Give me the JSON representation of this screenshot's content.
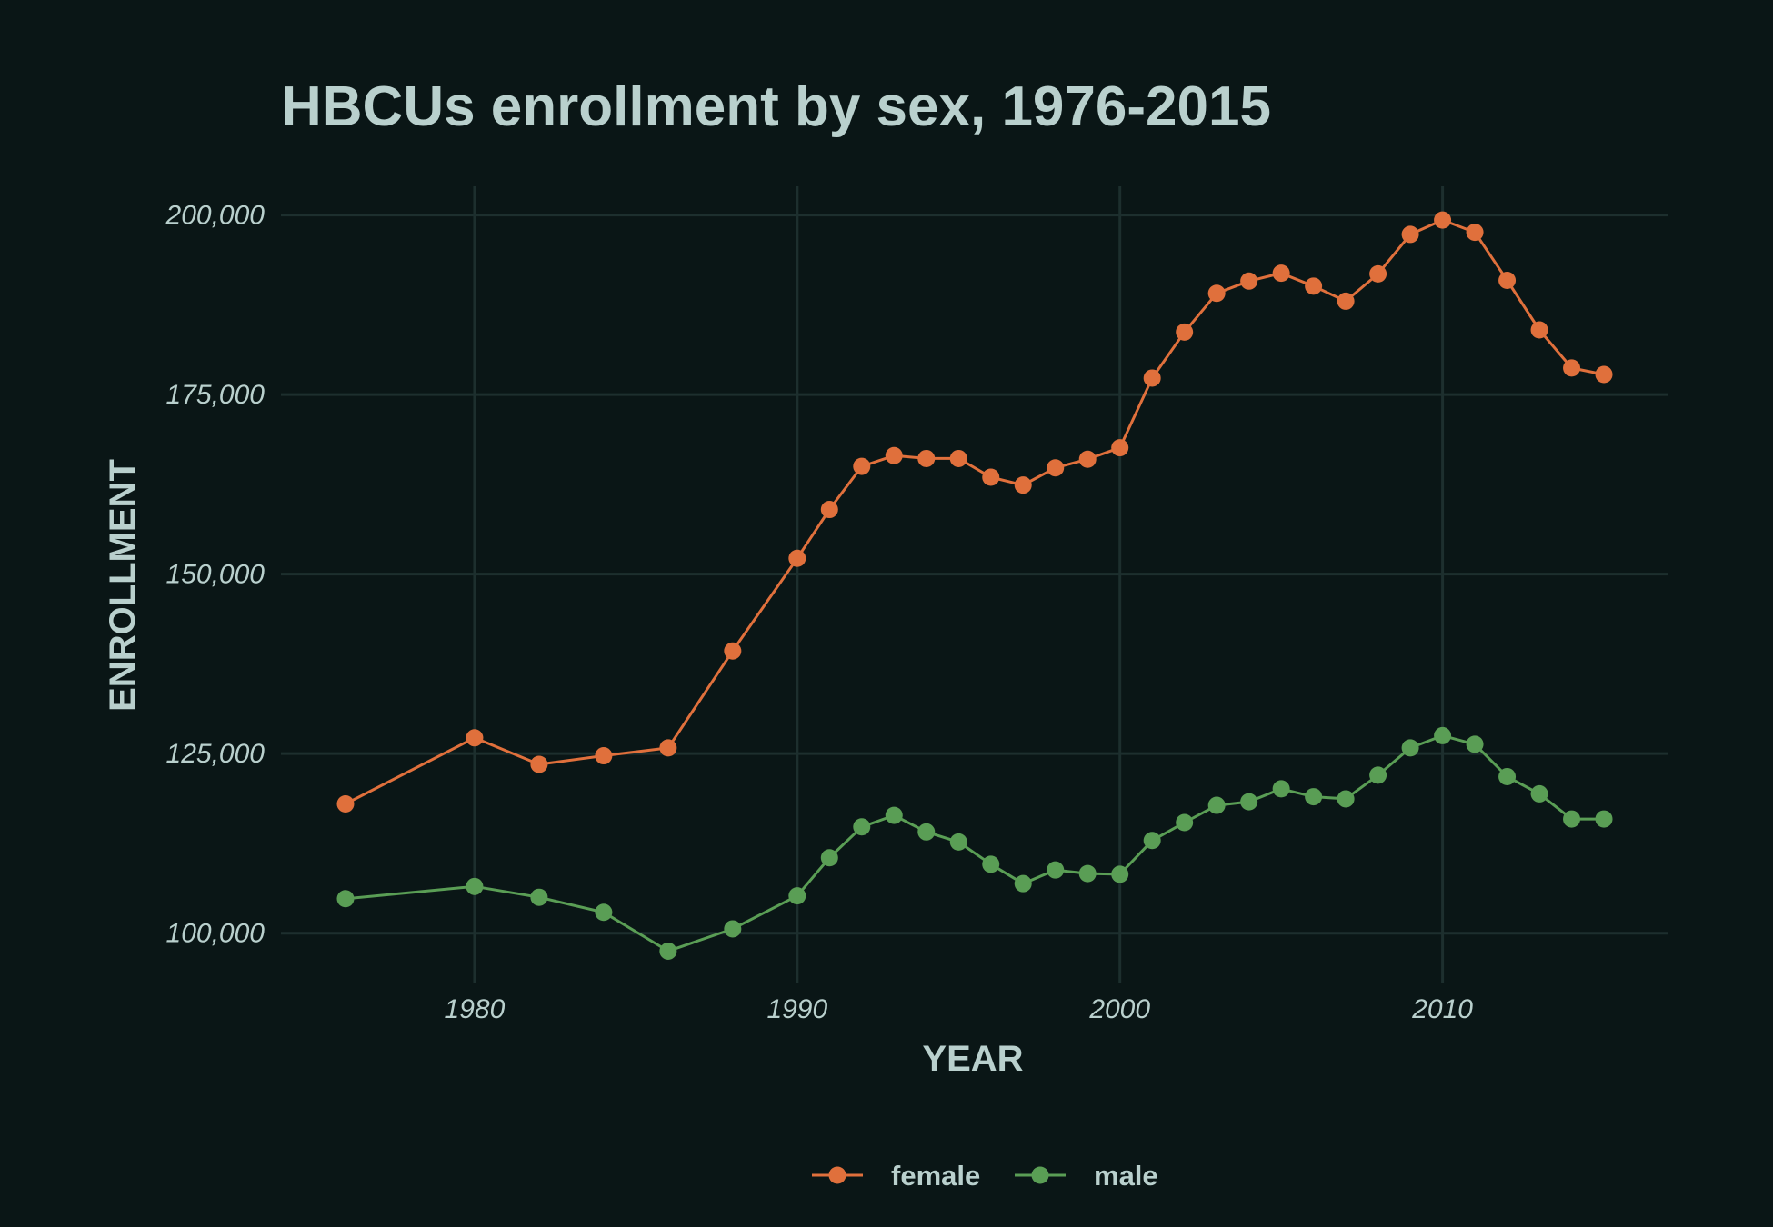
{
  "chart_data": {
    "type": "line",
    "title": "HBCUs enrollment by sex, 1976-2015",
    "xlabel": "YEAR",
    "ylabel": "ENROLLMENT",
    "xlim": [
      1974,
      2017
    ],
    "ylim": [
      93000,
      204000
    ],
    "x_ticks": [
      1980,
      1990,
      2000,
      2010
    ],
    "x_tick_labels": [
      "1980",
      "1990",
      "2000",
      "2010"
    ],
    "y_ticks": [
      100000,
      125000,
      150000,
      175000,
      200000
    ],
    "y_tick_labels": [
      "100,000",
      "125,000",
      "150,000",
      "175,000",
      "200,000"
    ],
    "grid": true,
    "legend_position": "bottom",
    "colors": {
      "background": "#0a1616",
      "grid": "#1d2f2e",
      "text": "#b9d0cd",
      "female": "#e0703c",
      "male": "#5a9e55"
    },
    "series": [
      {
        "name": "female",
        "x": [
          1976,
          1980,
          1982,
          1984,
          1986,
          1988,
          1990,
          1991,
          1992,
          1993,
          1994,
          1995,
          1996,
          1997,
          1998,
          1999,
          2000,
          2001,
          2002,
          2003,
          2004,
          2005,
          2006,
          2007,
          2008,
          2009,
          2010,
          2011,
          2012,
          2013,
          2014,
          2015
        ],
        "values": [
          118000,
          127200,
          123500,
          124700,
          125800,
          139300,
          152200,
          159000,
          165000,
          166500,
          166100,
          166100,
          163500,
          162400,
          164800,
          166000,
          167600,
          177300,
          183700,
          189100,
          190800,
          191900,
          190100,
          188000,
          191800,
          197300,
          199300,
          197600,
          190900,
          184000,
          178700,
          177800
        ]
      },
      {
        "name": "male",
        "x": [
          1976,
          1980,
          1982,
          1984,
          1986,
          1988,
          1990,
          1991,
          1992,
          1993,
          1994,
          1995,
          1996,
          1997,
          1998,
          1999,
          2000,
          2001,
          2002,
          2003,
          2004,
          2005,
          2006,
          2007,
          2008,
          2009,
          2010,
          2011,
          2012,
          2013,
          2014,
          2015
        ],
        "values": [
          104800,
          106500,
          105000,
          102900,
          97500,
          100600,
          105200,
          110500,
          114800,
          116400,
          114100,
          112700,
          109600,
          106900,
          108800,
          108300,
          108200,
          112900,
          115400,
          117800,
          118300,
          120100,
          119000,
          118700,
          122000,
          125800,
          127500,
          126300,
          121800,
          119400,
          115900,
          115900
        ]
      }
    ]
  }
}
